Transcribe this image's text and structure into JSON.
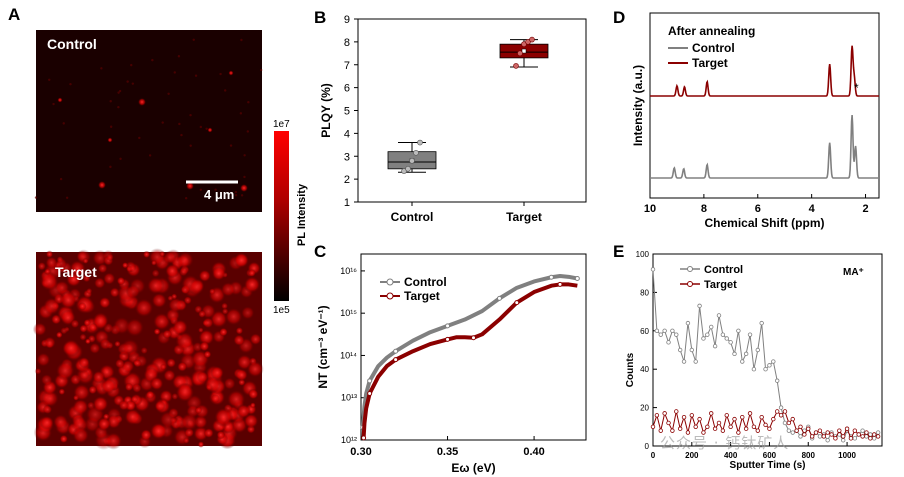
{
  "panels": {
    "A": {
      "label": "A",
      "image_top_label": "Control",
      "image_bottom_label": "Target",
      "scale_bar_label": "4 μm",
      "colorbar": {
        "max_label": "1e7",
        "min_label": "1e5",
        "axis_label": "PL Intensity"
      }
    },
    "B": {
      "label": "B"
    },
    "C": {
      "label": "C"
    },
    "D": {
      "label": "D"
    },
    "E": {
      "label": "E"
    }
  },
  "chart_data": [
    {
      "id": "B",
      "type": "box",
      "ylabel": "PLQY (%)",
      "xlabel": "",
      "ylim": [
        1,
        9
      ],
      "yticks": [
        1,
        2,
        3,
        4,
        5,
        6,
        7,
        8,
        9
      ],
      "categories": [
        "Control",
        "Target"
      ],
      "series": [
        {
          "name": "Control",
          "color": "#808080",
          "whisker_low": 2.3,
          "q1": 2.45,
          "median": 2.75,
          "q3": 3.2,
          "whisker_high": 3.6,
          "mean": 2.8,
          "points": [
            2.35,
            2.45,
            2.8,
            3.15,
            3.6
          ]
        },
        {
          "name": "Target",
          "color": "#8b0000",
          "whisker_low": 6.9,
          "q1": 7.3,
          "median": 7.55,
          "q3": 7.9,
          "whisker_high": 8.1,
          "mean": 7.6,
          "points": [
            6.95,
            7.5,
            7.9,
            8.0,
            8.1
          ]
        }
      ]
    },
    {
      "id": "C",
      "type": "line",
      "xlabel": "Eω (eV)",
      "ylabel": "NT (cm⁻³ eV⁻¹)",
      "xlim": [
        0.3,
        0.43
      ],
      "xticks": [
        0.3,
        0.35,
        0.4
      ],
      "xtick_labels": [
        "0.30",
        "0.35",
        "0.40"
      ],
      "ylim_log10": [
        12,
        16.4
      ],
      "yticks_log10": [
        12,
        13,
        14,
        15,
        16
      ],
      "ytick_labels": [
        "10¹²",
        "10¹³",
        "10¹⁴",
        "10¹⁵",
        "10¹⁶"
      ],
      "legend": [
        "Control",
        "Target"
      ],
      "series": [
        {
          "name": "Control",
          "color": "#808080",
          "x": [
            0.301,
            0.302,
            0.303,
            0.305,
            0.31,
            0.315,
            0.32,
            0.33,
            0.34,
            0.35,
            0.36,
            0.37,
            0.38,
            0.39,
            0.4,
            0.41,
            0.415,
            0.42,
            0.425
          ],
          "log10": [
            12.3,
            12.8,
            13.1,
            13.4,
            13.75,
            13.95,
            14.1,
            14.35,
            14.55,
            14.7,
            14.85,
            15.05,
            15.35,
            15.6,
            15.75,
            15.85,
            15.88,
            15.86,
            15.82
          ]
        },
        {
          "name": "Target",
          "color": "#8b0000",
          "x": [
            0.3015,
            0.302,
            0.303,
            0.305,
            0.31,
            0.315,
            0.32,
            0.33,
            0.34,
            0.35,
            0.355,
            0.36,
            0.365,
            0.37,
            0.38,
            0.39,
            0.4,
            0.41,
            0.415,
            0.42,
            0.425
          ],
          "log10": [
            12.05,
            12.4,
            12.75,
            13.1,
            13.5,
            13.75,
            13.9,
            14.1,
            14.27,
            14.38,
            14.43,
            14.43,
            14.42,
            14.5,
            14.85,
            15.25,
            15.5,
            15.65,
            15.68,
            15.68,
            15.65
          ]
        }
      ]
    },
    {
      "id": "D",
      "type": "line",
      "title": "After annealing",
      "xlabel": "Chemical Shift (ppm)",
      "ylabel": "Intensity (a.u.)",
      "xlim": [
        10,
        1.5
      ],
      "xticks": [
        10,
        8,
        6,
        4,
        2
      ],
      "legend": [
        "Control",
        "Target"
      ],
      "annotation": "*",
      "series": [
        {
          "name": "Control",
          "color": "#808080",
          "baseline": 0.0,
          "peaks": [
            {
              "ppm": 9.1,
              "height": 0.12
            },
            {
              "ppm": 8.75,
              "height": 0.11
            },
            {
              "ppm": 7.88,
              "height": 0.16
            },
            {
              "ppm": 3.33,
              "height": 0.42
            },
            {
              "ppm": 2.5,
              "height": 0.75
            },
            {
              "ppm": 2.37,
              "height": 0.38
            }
          ]
        },
        {
          "name": "Target",
          "color": "#8b0000",
          "baseline": 0.8,
          "peaks": [
            {
              "ppm": 9.0,
              "height": 0.12
            },
            {
              "ppm": 8.72,
              "height": 0.11
            },
            {
              "ppm": 7.88,
              "height": 0.17
            },
            {
              "ppm": 3.33,
              "height": 0.38
            },
            {
              "ppm": 2.5,
              "height": 0.58
            },
            {
              "ppm": 2.42,
              "height": 0.22
            }
          ]
        }
      ]
    },
    {
      "id": "E",
      "type": "line",
      "xlabel": "Sputter Time (s)",
      "ylabel": "Counts",
      "label": "MA⁺",
      "xlim": [
        0,
        1180
      ],
      "xticks": [
        0,
        200,
        400,
        600,
        800,
        1000
      ],
      "ylim": [
        0,
        100
      ],
      "yticks": [
        0,
        20,
        40,
        60,
        80,
        100
      ],
      "legend": [
        "Control",
        "Target"
      ],
      "series": [
        {
          "name": "Control",
          "color": "#808080",
          "x": [
            0,
            20,
            40,
            60,
            80,
            100,
            120,
            140,
            160,
            180,
            200,
            220,
            240,
            260,
            280,
            300,
            320,
            340,
            360,
            380,
            400,
            420,
            440,
            460,
            480,
            500,
            520,
            540,
            560,
            580,
            600,
            620,
            640,
            660,
            680,
            700,
            720,
            740,
            760,
            780,
            800,
            820,
            840,
            860,
            880,
            900,
            920,
            940,
            960,
            980,
            1000,
            1020,
            1040,
            1060,
            1080,
            1100,
            1120,
            1140,
            1160
          ],
          "y": [
            92,
            60,
            58,
            60,
            54,
            60,
            58,
            50,
            44,
            64,
            50,
            44,
            73,
            56,
            58,
            62,
            52,
            68,
            58,
            56,
            54,
            48,
            60,
            44,
            48,
            58,
            40,
            50,
            64,
            40,
            42,
            44,
            34,
            20,
            12,
            8,
            7,
            8,
            5,
            8,
            10,
            4,
            7,
            5,
            6,
            3,
            7,
            5,
            6,
            3,
            8,
            5,
            4,
            6,
            8,
            5,
            6,
            4,
            7
          ]
        },
        {
          "name": "Target",
          "color": "#8b0000",
          "x": [
            0,
            20,
            40,
            60,
            80,
            100,
            120,
            140,
            160,
            180,
            200,
            220,
            240,
            260,
            280,
            300,
            320,
            340,
            360,
            380,
            400,
            420,
            440,
            460,
            480,
            500,
            520,
            540,
            560,
            580,
            600,
            620,
            640,
            660,
            680,
            700,
            720,
            740,
            760,
            780,
            800,
            820,
            840,
            860,
            880,
            900,
            920,
            940,
            960,
            980,
            1000,
            1020,
            1040,
            1060,
            1080,
            1100,
            1120,
            1140,
            1160
          ],
          "y": [
            10,
            16,
            8,
            17,
            12,
            8,
            18,
            9,
            15,
            7,
            16,
            10,
            14,
            7,
            10,
            17,
            9,
            12,
            8,
            16,
            10,
            14,
            7,
            15,
            9,
            17,
            10,
            8,
            15,
            11,
            9,
            14,
            18,
            16,
            18,
            12,
            14,
            8,
            10,
            6,
            9,
            5,
            7,
            8,
            5,
            7,
            6,
            4,
            8,
            5,
            9,
            4,
            8,
            6,
            5,
            7,
            4,
            6,
            5
          ]
        }
      ]
    }
  ],
  "watermark": "公众号 · 钙钛矿人"
}
